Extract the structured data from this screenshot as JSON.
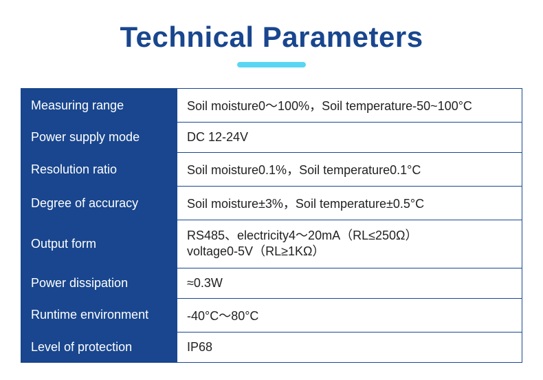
{
  "header": {
    "title": "Technical Parameters",
    "title_color": "#19468e",
    "title_fontsize": 42,
    "underline_color": "#5ad6f2",
    "underline_width": 100,
    "underline_height": 8
  },
  "table": {
    "label_bg": "#19468e",
    "label_color": "#ffffff",
    "value_bg": "#ffffff",
    "value_color": "#222222",
    "border_color": "#19468e",
    "label_width": 227,
    "fontsize": 18,
    "rows": [
      {
        "label": "Measuring range",
        "value": "Soil moisture0～100%，Soil temperature-50~100°C"
      },
      {
        "label": "Power supply mode",
        "value": "DC 12-24V"
      },
      {
        "label": "Resolution ratio",
        "value": "Soil moisture0.1%，Soil temperature0.1°C"
      },
      {
        "label": "Degree of accuracy",
        "value": "Soil moisture±3%，Soil temperature±0.5°C"
      },
      {
        "label": "Output form",
        "value": "RS485、electricity4～20mA（RL≤250Ω）\nvoltage0-5V（RL≥1KΩ）"
      },
      {
        "label": "Power dissipation",
        "value": "≈0.3W"
      },
      {
        "label": "Runtime environment",
        "value": "-40°C～80°C"
      },
      {
        "label": "Level of protection",
        "value": "IP68"
      }
    ]
  }
}
